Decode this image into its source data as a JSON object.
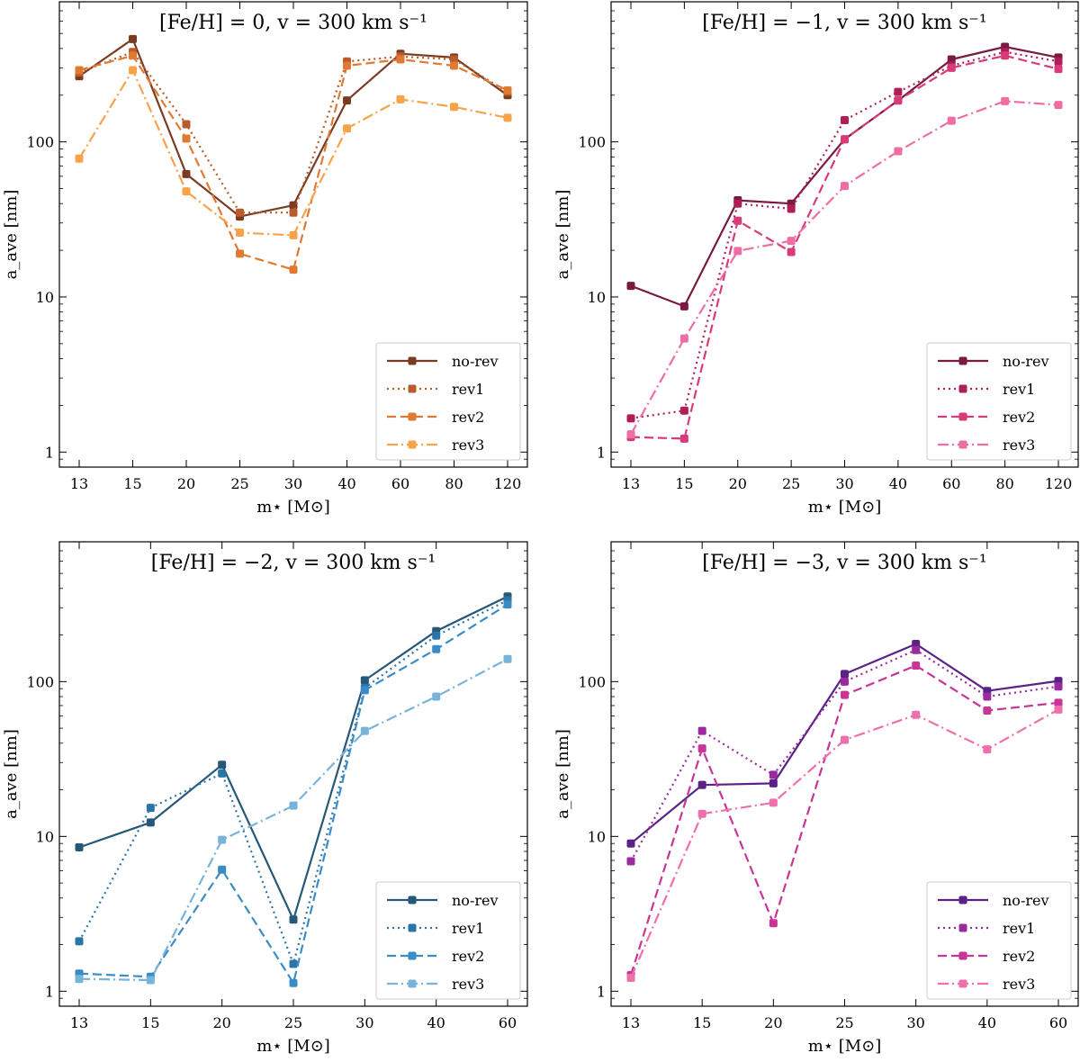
{
  "chart_data": [
    {
      "type": "line",
      "title": "[Fe/H] = 0, v = 300 km s⁻¹",
      "xlabel": "m⋆ [M⊙]",
      "ylabel": "a_ave [nm]",
      "yscale": "log",
      "ylim": [
        0.8,
        800
      ],
      "yticks": [
        1,
        10,
        100
      ],
      "ytick_labels": [
        "1",
        "10",
        "100"
      ],
      "categories": [
        "13",
        "15",
        "20",
        "25",
        "30",
        "40",
        "60",
        "80",
        "120"
      ],
      "legend_position": "lower-right",
      "series": [
        {
          "name": "no-rev",
          "style": "solid",
          "color": "#7a3b23",
          "values": [
            265,
            460,
            62,
            33,
            39,
            185,
            370,
            350,
            200
          ]
        },
        {
          "name": "rev1",
          "style": "dotted",
          "color": "#bb5a2a",
          "values": [
            280,
            380,
            130,
            35,
            35,
            330,
            355,
            340,
            210
          ]
        },
        {
          "name": "rev2",
          "style": "dashed",
          "color": "#e07a32",
          "values": [
            290,
            360,
            105,
            19,
            15,
            310,
            340,
            310,
            215
          ]
        },
        {
          "name": "rev3",
          "style": "dashdot",
          "color": "#f8a24a",
          "values": [
            78,
            290,
            48,
            26,
            25,
            122,
            188,
            168,
            143
          ]
        }
      ]
    },
    {
      "type": "line",
      "title": "[Fe/H] = −1, v = 300 km s⁻¹",
      "xlabel": "m⋆ [M⊙]",
      "ylabel": "a_ave [nm]",
      "yscale": "log",
      "ylim": [
        0.8,
        800
      ],
      "yticks": [
        1,
        10,
        100
      ],
      "ytick_labels": [
        "1",
        "10",
        "100"
      ],
      "categories": [
        "13",
        "15",
        "20",
        "25",
        "30",
        "40",
        "60",
        "80",
        "120"
      ],
      "legend_position": "lower-right",
      "series": [
        {
          "name": "no-rev",
          "style": "solid",
          "color": "#7a1a40",
          "values": [
            11.8,
            8.7,
            42,
            40,
            104,
            185,
            340,
            410,
            350
          ]
        },
        {
          "name": "rev1",
          "style": "dotted",
          "color": "#b01e58",
          "values": [
            1.65,
            1.85,
            40,
            37,
            138,
            210,
            310,
            380,
            330
          ]
        },
        {
          "name": "rev2",
          "style": "dashed",
          "color": "#d93a7a",
          "values": [
            1.25,
            1.22,
            31,
            19.5,
            104,
            185,
            300,
            360,
            295
          ]
        },
        {
          "name": "rev3",
          "style": "dashdot",
          "color": "#ee6ea4",
          "values": [
            1.3,
            5.4,
            19.8,
            23,
            52,
            87,
            137,
            183,
            173
          ]
        }
      ]
    },
    {
      "type": "line",
      "title": "[Fe/H] = −2, v = 300 km s⁻¹",
      "xlabel": "m⋆ [M⊙]",
      "ylabel": "a_ave [nm]",
      "yscale": "log",
      "ylim": [
        0.8,
        800
      ],
      "yticks": [
        1,
        10,
        100
      ],
      "ytick_labels": [
        "1",
        "10",
        "100"
      ],
      "categories": [
        "13",
        "15",
        "20",
        "25",
        "30",
        "40",
        "60"
      ],
      "legend_position": "lower-right",
      "series": [
        {
          "name": "no-rev",
          "style": "solid",
          "color": "#26587a",
          "values": [
            8.5,
            12.3,
            29,
            2.9,
            102,
            212,
            355
          ]
        },
        {
          "name": "rev1",
          "style": "dotted",
          "color": "#2a74a8",
          "values": [
            2.1,
            15.3,
            25.5,
            1.5,
            91,
            198,
            335
          ]
        },
        {
          "name": "rev2",
          "style": "dashed",
          "color": "#3a8cc6",
          "values": [
            1.3,
            1.24,
            6.1,
            1.13,
            88,
            162,
            315
          ]
        },
        {
          "name": "rev3",
          "style": "dashdot",
          "color": "#78b3d9",
          "values": [
            1.2,
            1.18,
            9.5,
            15.8,
            48,
            80,
            140
          ]
        }
      ]
    },
    {
      "type": "line",
      "title": "[Fe/H] = −3, v = 300 km s⁻¹",
      "xlabel": "m⋆ [M⊙]",
      "ylabel": "a_ave [nm]",
      "yscale": "log",
      "ylim": [
        0.8,
        800
      ],
      "yticks": [
        1,
        10,
        100
      ],
      "ytick_labels": [
        "1",
        "10",
        "100"
      ],
      "categories": [
        "13",
        "15",
        "20",
        "25",
        "30",
        "40",
        "60"
      ],
      "legend_position": "lower-right",
      "series": [
        {
          "name": "no-rev",
          "style": "solid",
          "color": "#5b2286",
          "values": [
            9,
            21.5,
            22,
            112,
            175,
            87,
            101
          ]
        },
        {
          "name": "rev1",
          "style": "dotted",
          "color": "#9a2a9e",
          "values": [
            6.9,
            48,
            25,
            100,
            160,
            80,
            93
          ]
        },
        {
          "name": "rev2",
          "style": "dashed",
          "color": "#c93497",
          "values": [
            1.27,
            37,
            2.75,
            82,
            127,
            65,
            73
          ]
        },
        {
          "name": "rev3",
          "style": "dashdot",
          "color": "#ef6fab",
          "values": [
            1.22,
            14,
            16.5,
            42,
            61,
            36.5,
            66
          ]
        }
      ]
    }
  ]
}
